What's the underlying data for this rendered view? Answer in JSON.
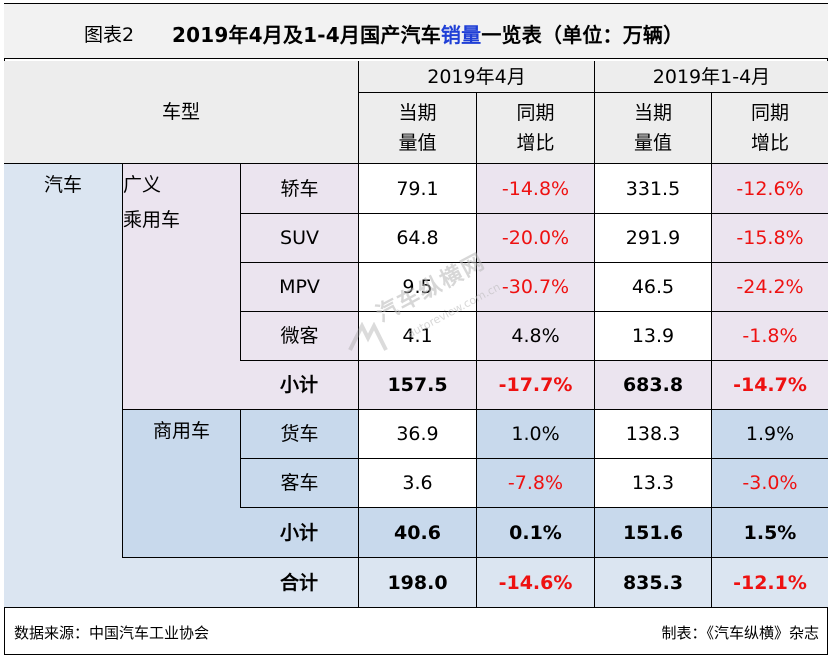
{
  "title": {
    "label": "图表2",
    "text_before": "2019年4月及1-4月国产汽车",
    "highlight": "销量",
    "text_after": "一览表（单位：万辆）"
  },
  "header": {
    "type_col": "车型",
    "period_month": "2019年4月",
    "period_ytd": "2019年1-4月",
    "value_line1": "当期",
    "value_line2": "量值",
    "growth_line1": "同期",
    "growth_line2": "增比"
  },
  "categories": {
    "vehicle": "汽车",
    "passenger_line1": "广义",
    "passenger_line2": "乘用车",
    "commercial": "商用车"
  },
  "rows": [
    {
      "type": "轿车",
      "m_val": "79.1",
      "m_growth": "-14.8%",
      "y_val": "331.5",
      "y_growth": "-12.6%"
    },
    {
      "type": "SUV",
      "m_val": "64.8",
      "m_growth": "-20.0%",
      "y_val": "291.9",
      "y_growth": "-15.8%"
    },
    {
      "type": "MPV",
      "m_val": "9.5",
      "m_growth": "-30.7%",
      "y_val": "46.5",
      "y_growth": "-24.2%"
    },
    {
      "type": "微客",
      "m_val": "4.1",
      "m_growth": "4.8%",
      "y_val": "13.9",
      "y_growth": "-1.8%"
    },
    {
      "type": "小计",
      "m_val": "157.5",
      "m_growth": "-17.7%",
      "y_val": "683.8",
      "y_growth": "-14.7%"
    },
    {
      "type": "货车",
      "m_val": "36.9",
      "m_growth": "1.0%",
      "y_val": "138.3",
      "y_growth": "1.9%"
    },
    {
      "type": "客车",
      "m_val": "3.6",
      "m_growth": "-7.8%",
      "y_val": "13.3",
      "y_growth": "-3.0%"
    },
    {
      "type": "小计",
      "m_val": "40.6",
      "m_growth": "0.1%",
      "y_val": "151.6",
      "y_growth": "1.5%"
    },
    {
      "type": "合计",
      "m_val": "198.0",
      "m_growth": "-14.6%",
      "y_val": "835.3",
      "y_growth": "-12.1%"
    }
  ],
  "footer": {
    "source": "数据来源：中国汽车工业协会",
    "maker": "制表：《汽车纵横》杂志"
  },
  "watermark": {
    "text": "汽车纵横网",
    "url": "autoreview.com.cn"
  },
  "colors": {
    "highlight": "#1f3fd6",
    "negative": "#ee1111",
    "passenger_bg": "#ebe4ef",
    "commercial_bg": "#c8d9ec"
  }
}
